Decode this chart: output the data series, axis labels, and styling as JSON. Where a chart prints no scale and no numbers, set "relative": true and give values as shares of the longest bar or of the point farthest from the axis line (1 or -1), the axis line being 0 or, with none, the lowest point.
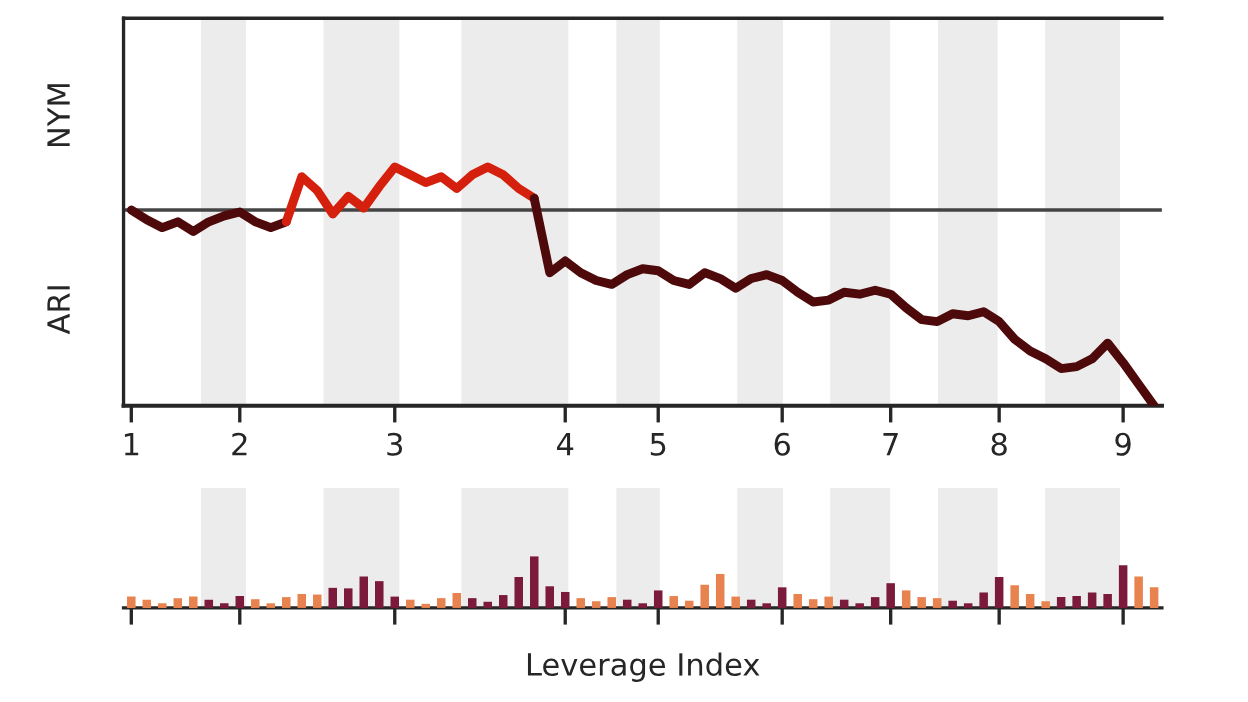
{
  "chart_data": [
    {
      "type": "line",
      "relative": true,
      "tick_labels": "x",
      "grid": false,
      "legend": false,
      "marker": "none",
      "line_style": "solid",
      "annotations": [
        "NYM",
        "ARI"
      ],
      "categories": [
        "1",
        null,
        null,
        null,
        null,
        null,
        null,
        "2",
        null,
        null,
        null,
        null,
        null,
        null,
        null,
        null,
        null,
        "3",
        null,
        null,
        null,
        null,
        null,
        null,
        null,
        null,
        null,
        null,
        "4",
        null,
        null,
        null,
        null,
        null,
        "5",
        null,
        null,
        null,
        null,
        null,
        null,
        null,
        "6",
        null,
        null,
        null,
        null,
        null,
        null,
        "7",
        null,
        null,
        null,
        null,
        null,
        null,
        "8",
        null,
        null,
        null,
        null,
        null,
        null,
        null,
        "9",
        null,
        null
      ],
      "series": [
        {
          "color": "#4e0a0a",
          "values": [
            0,
            -0.05,
            -0.09,
            -0.06,
            -0.11,
            -0.06,
            -0.03,
            -0.01,
            -0.06,
            -0.09,
            -0.06,
            null,
            null,
            null,
            null,
            null,
            null,
            null,
            null,
            null,
            null,
            null,
            null,
            null,
            null,
            null,
            null,
            null,
            null,
            null,
            null,
            null,
            null,
            null,
            null,
            null,
            null,
            null,
            null,
            null,
            null,
            null,
            null,
            null,
            null,
            null,
            null,
            null,
            null,
            null,
            null,
            null,
            null,
            null,
            null,
            null,
            null,
            null,
            null,
            null,
            null,
            null,
            null,
            null,
            null,
            null,
            null
          ]
        },
        {
          "color": "#d4200c",
          "values": [
            null,
            null,
            null,
            null,
            null,
            null,
            null,
            null,
            null,
            null,
            -0.06,
            0.17,
            0.1,
            -0.02,
            0.07,
            0.01,
            0.12,
            0.22,
            0.18,
            0.14,
            0.17,
            0.11,
            0.18,
            0.22,
            0.18,
            0.11,
            0.06,
            null,
            null,
            null,
            null,
            null,
            null,
            null,
            null,
            null,
            null,
            null,
            null,
            null,
            null,
            null,
            null,
            null,
            null,
            null,
            null,
            null,
            null,
            null,
            null,
            null,
            null,
            null,
            null,
            null,
            null,
            null,
            null,
            null,
            null,
            null,
            null,
            null,
            null,
            null,
            null
          ]
        },
        {
          "color": "#4e0a0a",
          "values": [
            null,
            null,
            null,
            null,
            null,
            null,
            null,
            null,
            null,
            null,
            null,
            null,
            null,
            null,
            null,
            null,
            null,
            null,
            null,
            null,
            null,
            null,
            null,
            null,
            null,
            null,
            0.06,
            -0.32,
            -0.26,
            -0.32,
            -0.36,
            -0.38,
            -0.33,
            -0.3,
            -0.31,
            -0.36,
            -0.38,
            -0.32,
            -0.35,
            -0.4,
            -0.35,
            -0.33,
            -0.36,
            -0.42,
            -0.47,
            -0.46,
            -0.42,
            -0.43,
            -0.41,
            -0.43,
            -0.5,
            -0.56,
            -0.57,
            -0.53,
            -0.54,
            -0.52,
            -0.57,
            -0.66,
            -0.72,
            -0.76,
            -0.81,
            -0.8,
            -0.76,
            -0.68,
            -0.78,
            -0.89,
            -1.0
          ]
        }
      ]
    },
    {
      "type": "bar",
      "relative": true,
      "tick_labels": false,
      "grid": false,
      "legend": false,
      "xlabel": "Leverage Index",
      "categories": [
        "1",
        null,
        null,
        null,
        null,
        null,
        null,
        "2",
        null,
        null,
        null,
        null,
        null,
        null,
        null,
        null,
        null,
        "3",
        null,
        null,
        null,
        null,
        null,
        null,
        null,
        null,
        null,
        null,
        "4",
        null,
        null,
        null,
        null,
        null,
        "5",
        null,
        null,
        null,
        null,
        null,
        null,
        null,
        "6",
        null,
        null,
        null,
        null,
        null,
        null,
        "7",
        null,
        null,
        null,
        null,
        null,
        null,
        "8",
        null,
        null,
        null,
        null,
        null,
        null,
        null,
        "9",
        null,
        null
      ],
      "values": [
        0.22,
        0.16,
        0.09,
        0.19,
        0.22,
        0.16,
        0.09,
        0.23,
        0.17,
        0.09,
        0.21,
        0.27,
        0.26,
        0.39,
        0.38,
        0.61,
        0.52,
        0.22,
        0.16,
        0.08,
        0.19,
        0.29,
        0.19,
        0.12,
        0.25,
        0.6,
        1.0,
        0.42,
        0.31,
        0.19,
        0.13,
        0.21,
        0.16,
        0.09,
        0.34,
        0.23,
        0.14,
        0.45,
        0.66,
        0.22,
        0.16,
        0.09,
        0.4,
        0.27,
        0.17,
        0.22,
        0.16,
        0.09,
        0.21,
        0.48,
        0.34,
        0.21,
        0.19,
        0.14,
        0.09,
        0.3,
        0.6,
        0.44,
        0.27,
        0.13,
        0.21,
        0.23,
        0.3,
        0.27,
        0.83,
        0.61,
        0.4
      ],
      "colors": [
        "#e8834f",
        "#e8834f",
        "#e8834f",
        "#e8834f",
        "#e8834f",
        "#7c1a3c",
        "#7c1a3c",
        "#7c1a3c",
        "#e8834f",
        "#e8834f",
        "#e8834f",
        "#e8834f",
        "#e8834f",
        "#7c1a3c",
        "#7c1a3c",
        "#7c1a3c",
        "#7c1a3c",
        "#7c1a3c",
        "#e8834f",
        "#e8834f",
        "#e8834f",
        "#e8834f",
        "#7c1a3c",
        "#7c1a3c",
        "#7c1a3c",
        "#7c1a3c",
        "#7c1a3c",
        "#7c1a3c",
        "#7c1a3c",
        "#e8834f",
        "#e8834f",
        "#e8834f",
        "#7c1a3c",
        "#7c1a3c",
        "#7c1a3c",
        "#e8834f",
        "#e8834f",
        "#e8834f",
        "#e8834f",
        "#e8834f",
        "#7c1a3c",
        "#7c1a3c",
        "#7c1a3c",
        "#e8834f",
        "#e8834f",
        "#e8834f",
        "#7c1a3c",
        "#7c1a3c",
        "#7c1a3c",
        "#7c1a3c",
        "#e8834f",
        "#e8834f",
        "#e8834f",
        "#7c1a3c",
        "#7c1a3c",
        "#7c1a3c",
        "#7c1a3c",
        "#e8834f",
        "#e8834f",
        "#e8834f",
        "#7c1a3c",
        "#7c1a3c",
        "#7c1a3c",
        "#7c1a3c",
        "#7c1a3c",
        "#e8834f",
        "#e8834f"
      ]
    }
  ]
}
